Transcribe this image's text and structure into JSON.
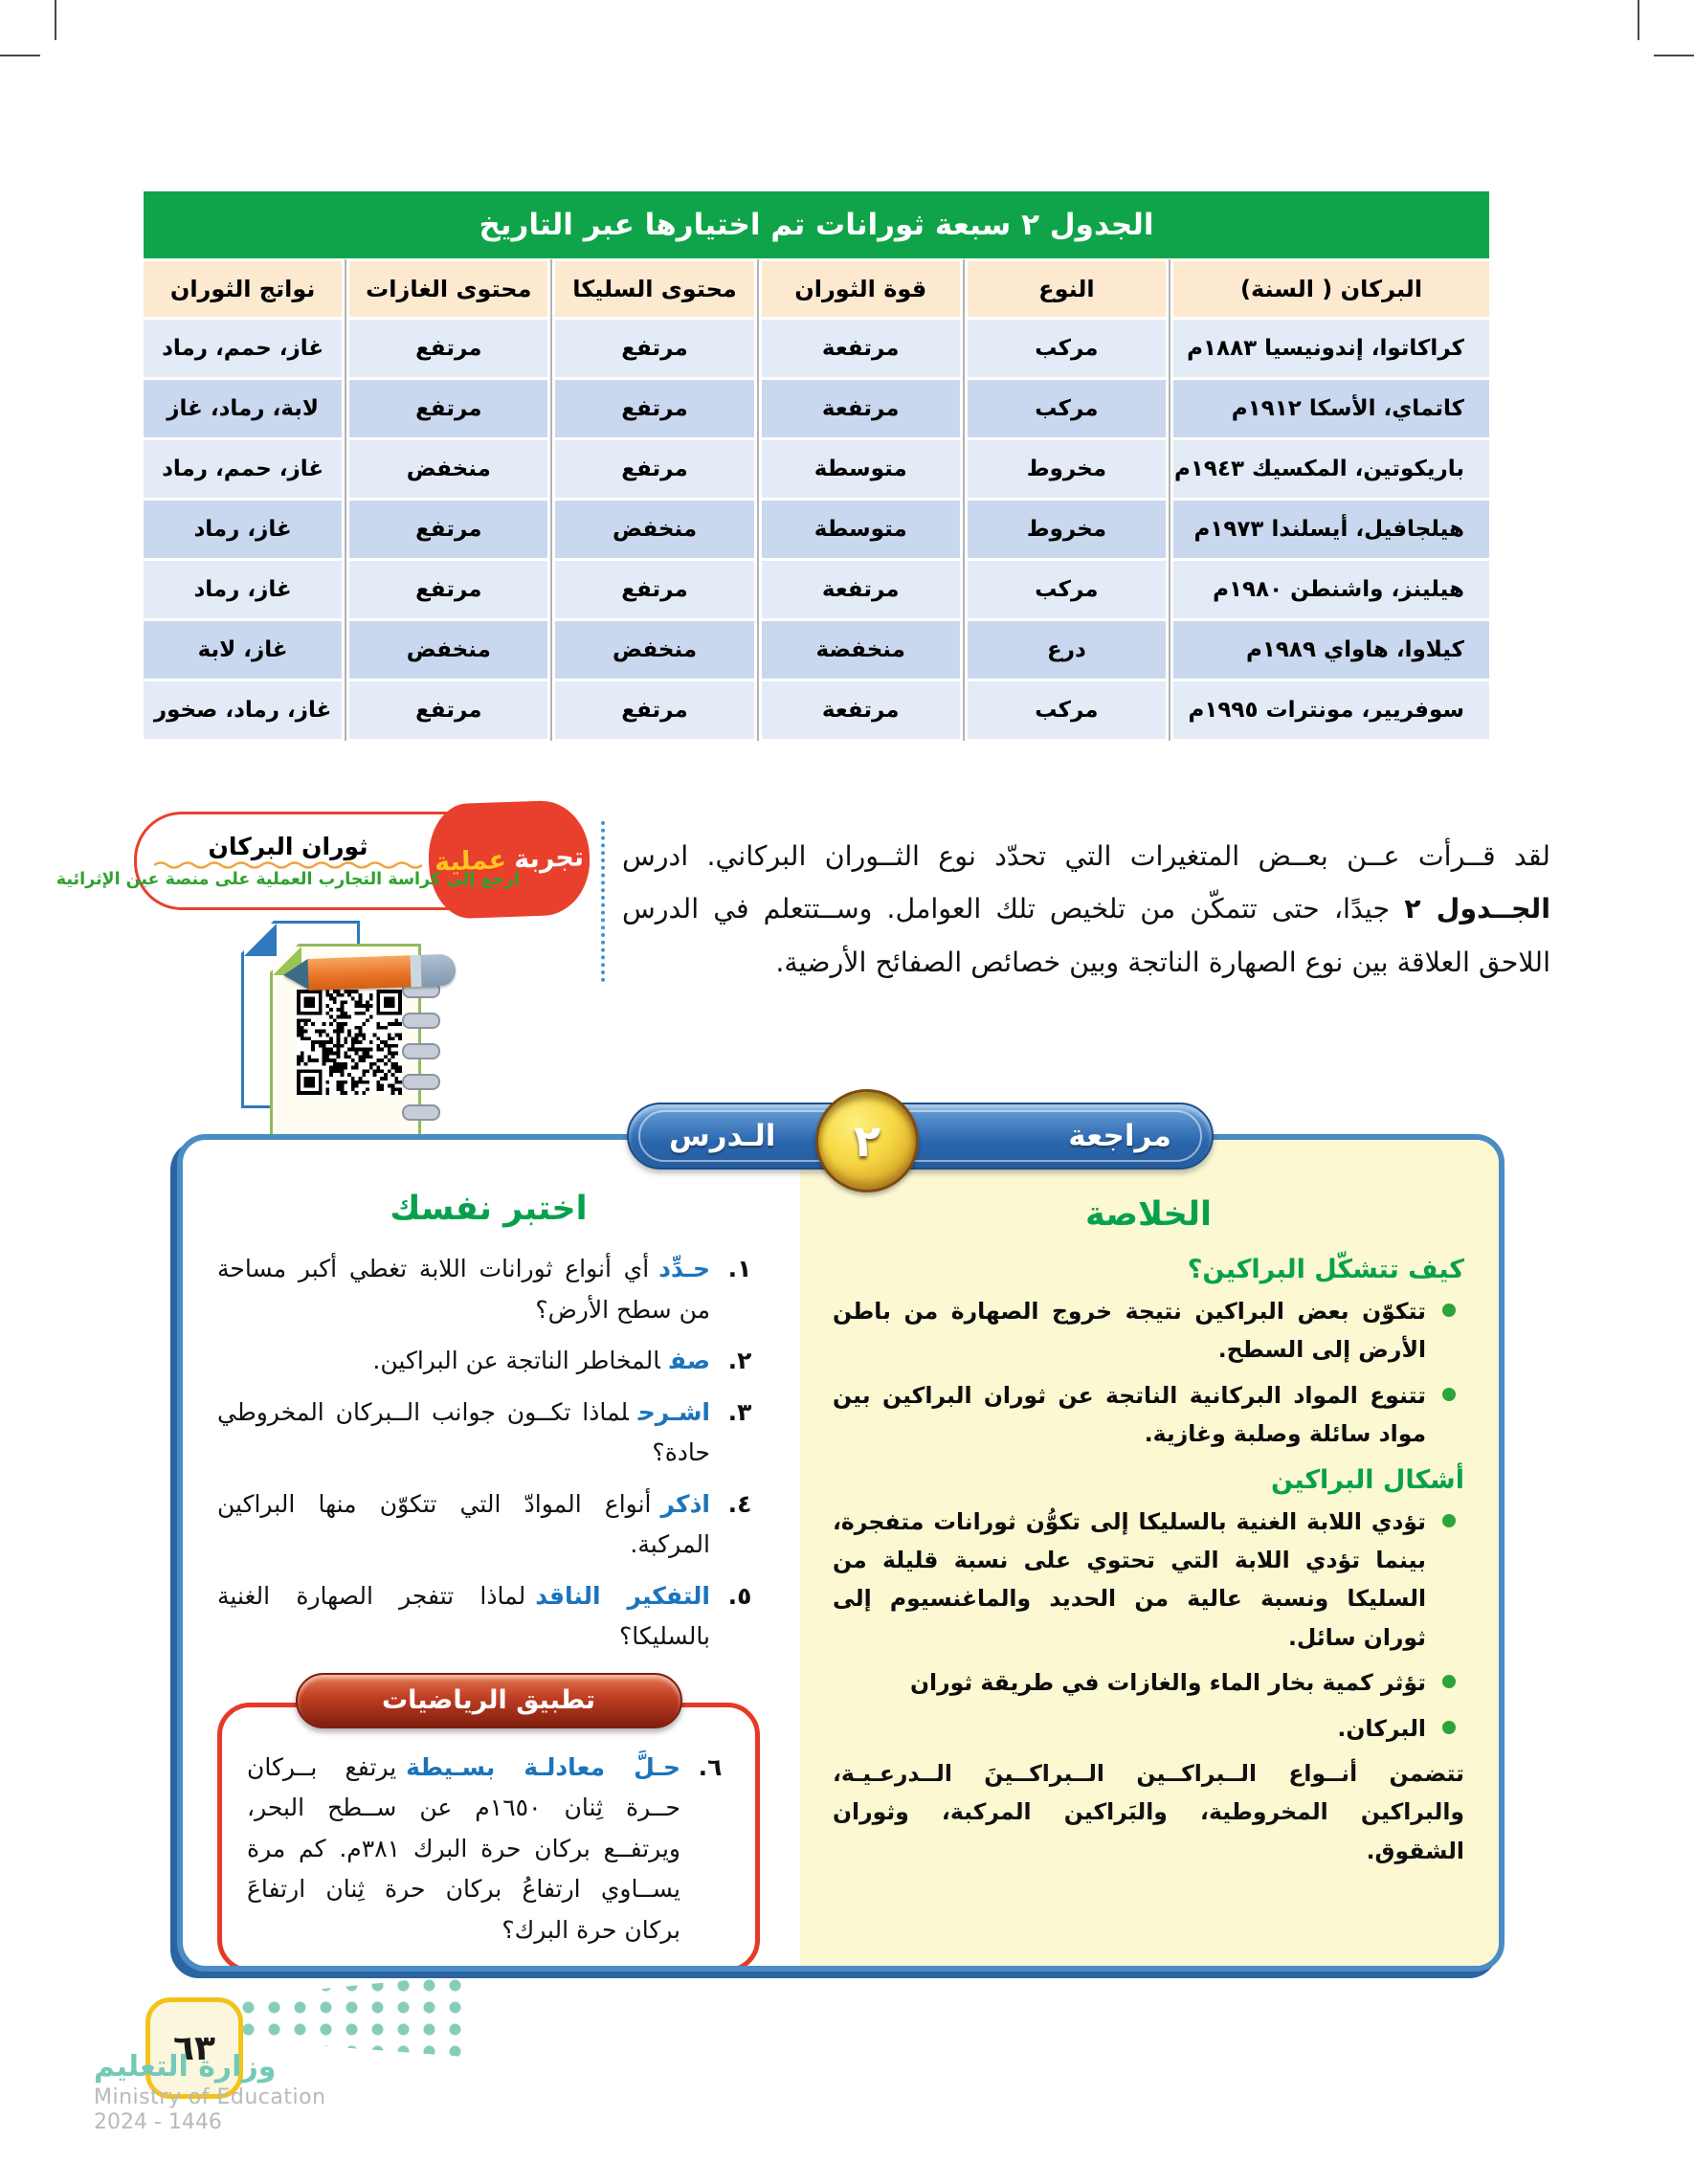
{
  "colors": {
    "table_header_green": "#0fa449",
    "column_header_peach": "#fce9cf",
    "row_light_blue": "#e3ebf6",
    "row_dark_blue": "#c9d8ef",
    "accent_red": "#e8402d",
    "banner_blue": "#2b66ad",
    "summary_yellow": "#fbf8d2",
    "heading_green": "#07a14e",
    "keyword_blue": "#1b74bc",
    "gold_badge": "#f6d844",
    "ministry_teal": "#74c9b6"
  },
  "table": {
    "title": "الجدول ٢ سبعة ثورانات تم اختيارها عبر التاريخ",
    "headers": [
      "البركان ( السنة)",
      "النوع",
      "قوة الثوران",
      "محتوى السليكا",
      "محتوى الغازات",
      "نواتج الثوران"
    ],
    "rows": [
      {
        "volcano": "كراكاتوا، إندونيسيا ١٨٨٣م",
        "type": "مركب",
        "power": "مرتفعة",
        "silica": "مرتفع",
        "gases": "مرتفع",
        "products": "غاز، حمم، رماد"
      },
      {
        "volcano": "كاتماي، الأسكا ١٩١٢م",
        "type": "مركب",
        "power": "مرتفعة",
        "silica": "مرتفع",
        "gases": "مرتفع",
        "products": "لابة، رماد، غاز"
      },
      {
        "volcano": "باريكوتين، المكسيك ١٩٤٣م",
        "type": "مخروط",
        "power": "متوسطة",
        "silica": "مرتفع",
        "gases": "منخفض",
        "products": "غاز، حمم، رماد"
      },
      {
        "volcano": "هيلجافيل، أيسلندا ١٩٧٣م",
        "type": "مخروط",
        "power": "متوسطة",
        "silica": "منخفض",
        "gases": "مرتفع",
        "products": "غاز، رماد"
      },
      {
        "volcano": "هيلينز، واشنطن ١٩٨٠م",
        "type": "مركب",
        "power": "مرتفعة",
        "silica": "مرتفع",
        "gases": "مرتفع",
        "products": "غاز، رماد"
      },
      {
        "volcano": "كيلاوا، هاواي ١٩٨٩م",
        "type": "درع",
        "power": "منخفضة",
        "silica": "منخفض",
        "gases": "منخفض",
        "products": "غاز، لابة"
      },
      {
        "volcano": "سوفريير، مونترات ١٩٩٥م",
        "type": "مركب",
        "power": "مرتفعة",
        "silica": "مرتفع",
        "gases": "مرتفع",
        "products": "غاز، رماد، صخور"
      }
    ]
  },
  "intro": {
    "before_bold": "لقد قــرأت عــن بعــض المتغيرات التي تحدّد نوع الثــوران البركاني. ادرس ",
    "bold": "الجــدول ٢",
    "after_bold": " جيدًا، حتى تتمكّن من تلخيص تلك العوامل. وســتتعلم في الدرس اللاحق العلاقة بين نوع الصهارة الناتجة وبين خصائص الصفائح الأرضية."
  },
  "experiment": {
    "badge_word1": "تجربة",
    "badge_word2": "عملية",
    "title": "ثوران البركان",
    "subtitle": "ارجع إلى كراسة التجارب العملية على منصة عين الإثرائية"
  },
  "review": {
    "banner_right": "مراجعة",
    "lesson_number": "٢",
    "banner_left": "الـدرس",
    "summary": {
      "title": "الخلاصة",
      "heading1": "كيف تتشكّل البراكين؟",
      "bullets1": [
        "تتكوّن بعض البراكين نتيجة خروج الصهارة من باطن الأرض إلى السطح.",
        "تتنوع المواد البركانية الناتجة عن ثوران البراكين بين مواد سائلة وصلبة وغازية."
      ],
      "heading2": "أشكال البراكين",
      "bullets2": [
        "تؤدي اللابة الغنية بالسليكا إلى تكوُّن ثورانات متفجرة، بينما تؤدي اللابة التي تحتوي على نسبة قليلة من السليكا ونسبة عالية من الحديد والماغنسيوم إلى ثوران سائل.",
        "تؤثر كمية بخار الماء والغازات في طريقة ثوران",
        "البركان."
      ],
      "closing": "تتضمن أنــواع الــبراكــين الــبراكــينَ الــدرعـيـة، والبراكين المخروطية، والبَراكين المركبة، وثوران الشقوق."
    },
    "selftest": {
      "title": "اختبر نفسك",
      "questions": [
        {
          "num": "١.",
          "keyword": "حـدِّد",
          "text": "أي أنواع ثورانات اللابة تغطي أكبر مساحة من سطح الأرض؟"
        },
        {
          "num": "٢.",
          "keyword": "صف",
          "text": "المخاطر الناتجة عن البراكين."
        },
        {
          "num": "٣.",
          "keyword": "اشـرح",
          "text": "لماذا تكــون جوانب الــبركان المخروطي حادة؟"
        },
        {
          "num": "٤.",
          "keyword": "اذكر",
          "text": "أنواع الموادّ التي تتكوّن منها البراكين المركبة."
        },
        {
          "num": "٥.",
          "keyword": "التفكير الناقد",
          "text": "لماذا تتفجر الصهارة الغنية بالسليكا؟"
        }
      ],
      "math_badge": "تطبيق الرياضيات",
      "math_question": {
        "num": "٦.",
        "keyword": "حـلَّ معادلـة بسـيطة",
        "text": "يرتفع بــركان حــرة ثِنان ١٦٥٠م عن ســطح البحر، ويرتفــع بركان حرة البرك ٣٨١م. كم مرة يســاوي ارتفاعُ بركان حرة ثِنان ارتفاعَ بركان حرة البرك؟"
      }
    }
  },
  "footer": {
    "page_number": "٦٣",
    "ministry_ar": "وزارة التعليم",
    "ministry_en": "Ministry of Education",
    "edition": "2024 - 1446"
  }
}
